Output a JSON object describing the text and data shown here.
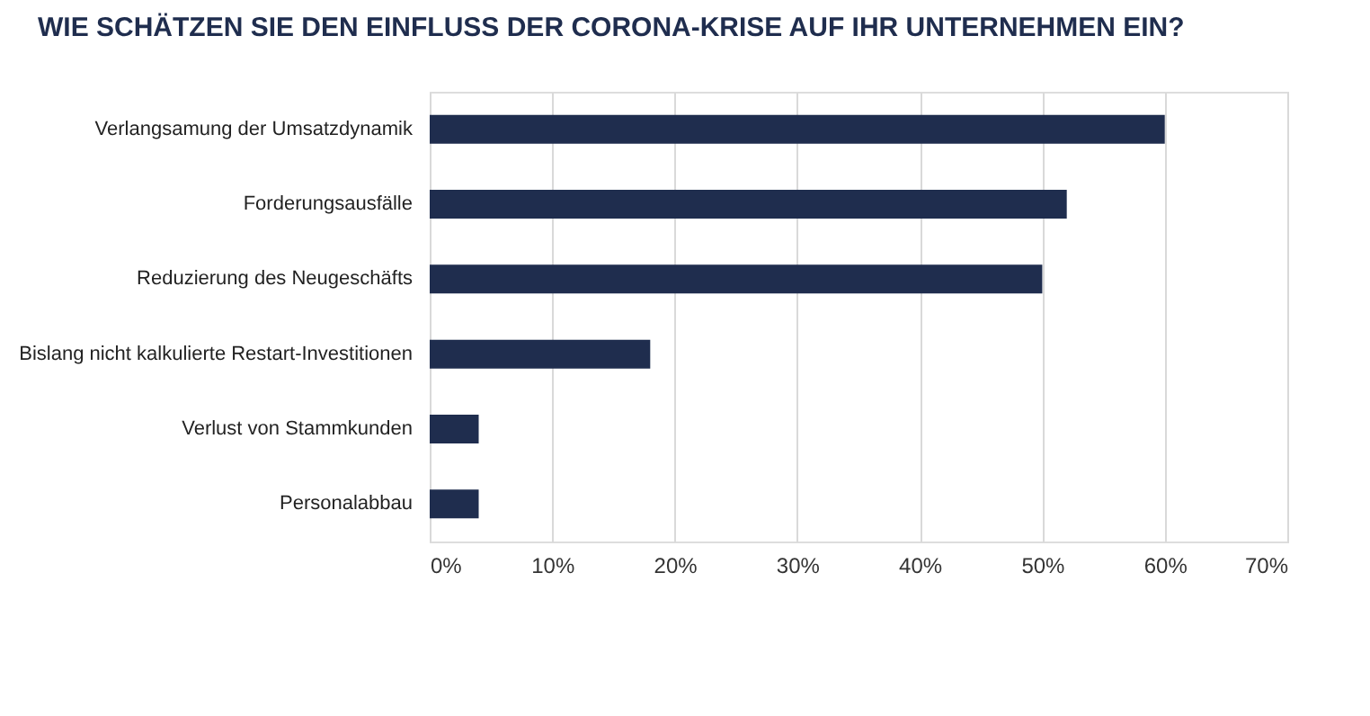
{
  "chart_data": {
    "type": "bar",
    "orientation": "horizontal",
    "title": "WIE SCHÄTZEN SIE DEN EINFLUSS DER CORONA-KRISE AUF IHR UNTERNEHMEN EIN?",
    "categories": [
      "Verlangsamung der Umsatzdynamik",
      "Forderungsausfälle",
      "Reduzierung des Neugeschäfts",
      "Bislang nicht kalkulierte Restart-Investitionen",
      "Verlust von Stammkunden",
      "Personalabbau"
    ],
    "values": [
      60,
      52,
      50,
      18,
      4,
      4
    ],
    "color": "#1f2d4e",
    "xlim": [
      0,
      70
    ],
    "xticks": [
      {
        "value": 0,
        "label": "0%"
      },
      {
        "value": 10,
        "label": "10%"
      },
      {
        "value": 20,
        "label": "20%"
      },
      {
        "value": 30,
        "label": "30%"
      },
      {
        "value": 40,
        "label": "40%"
      },
      {
        "value": 50,
        "label": "50%"
      },
      {
        "value": 60,
        "label": "60%"
      },
      {
        "value": 70,
        "label": "70%"
      }
    ],
    "grid": "x"
  }
}
